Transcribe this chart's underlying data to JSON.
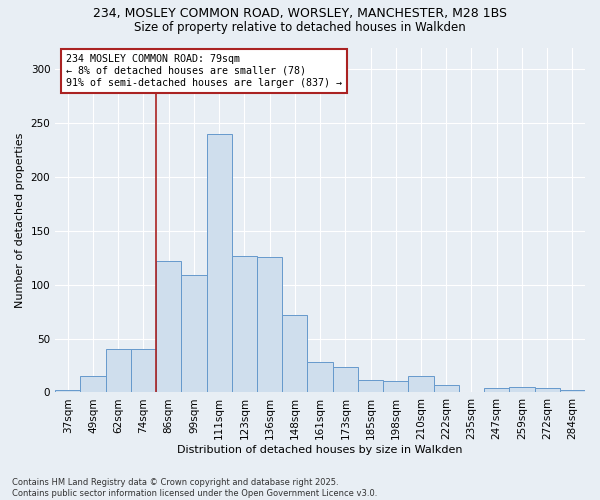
{
  "title_line1": "234, MOSLEY COMMON ROAD, WORSLEY, MANCHESTER, M28 1BS",
  "title_line2": "Size of property relative to detached houses in Walkden",
  "xlabel": "Distribution of detached houses by size in Walkden",
  "ylabel": "Number of detached properties",
  "categories": [
    "37sqm",
    "49sqm",
    "62sqm",
    "74sqm",
    "86sqm",
    "99sqm",
    "111sqm",
    "123sqm",
    "136sqm",
    "148sqm",
    "161sqm",
    "173sqm",
    "185sqm",
    "198sqm",
    "210sqm",
    "222sqm",
    "235sqm",
    "247sqm",
    "259sqm",
    "272sqm",
    "284sqm"
  ],
  "values": [
    2,
    15,
    40,
    40,
    122,
    109,
    240,
    127,
    126,
    72,
    28,
    24,
    12,
    11,
    15,
    7,
    0,
    4,
    5,
    4,
    2
  ],
  "bar_color": "#cfdeed",
  "bar_edge_color": "#6699cc",
  "vline_x_idx": 3.5,
  "vline_color": "#aa2222",
  "annotation_text": "234 MOSLEY COMMON ROAD: 79sqm\n← 8% of detached houses are smaller (78)\n91% of semi-detached houses are larger (837) →",
  "annotation_box_facecolor": "#ffffff",
  "annotation_box_edgecolor": "#aa2222",
  "ylim": [
    0,
    320
  ],
  "yticks": [
    0,
    50,
    100,
    150,
    200,
    250,
    300
  ],
  "footnote": "Contains HM Land Registry data © Crown copyright and database right 2025.\nContains public sector information licensed under the Open Government Licence v3.0.",
  "bg_color": "#e8eef4",
  "plot_bg_color": "#e8eef4",
  "grid_color": "#ffffff",
  "title1_fontsize": 9,
  "title2_fontsize": 8.5,
  "tick_fontsize": 7.5,
  "label_fontsize": 8,
  "footnote_fontsize": 6
}
